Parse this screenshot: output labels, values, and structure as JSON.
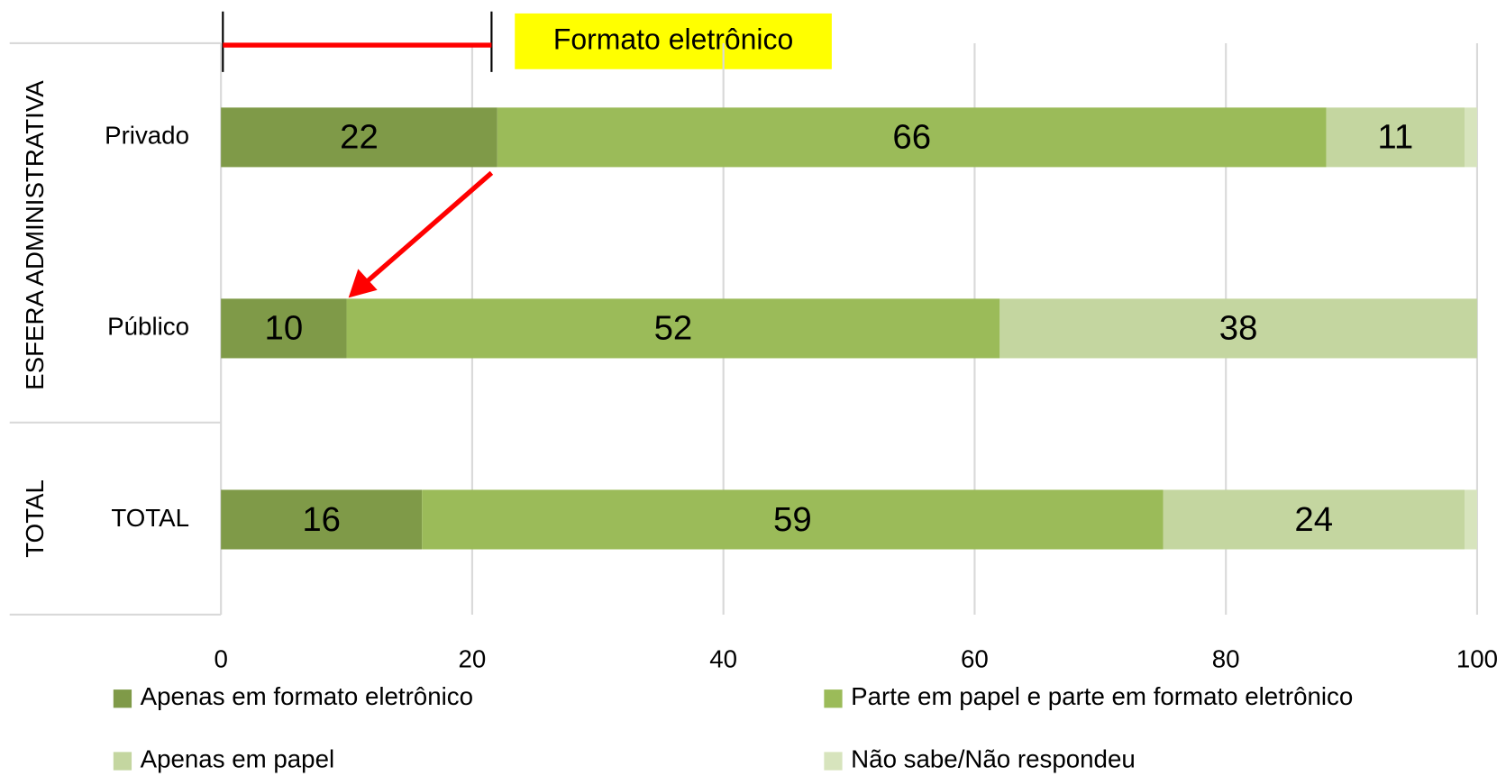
{
  "chart_data": {
    "type": "stacked_bar_horizontal",
    "group_labels": [
      "ESFERA ADMINISTRATIVA",
      "TOTAL"
    ],
    "annotation": "Formato eletrônico",
    "categories": [
      "Privado",
      "Público",
      "TOTAL"
    ],
    "series": [
      {
        "name": "Apenas em formato eletrônico",
        "color": "#7f9a48",
        "values": [
          22,
          10,
          16
        ]
      },
      {
        "name": "Parte em papel e parte em formato eletrônico",
        "color": "#9bbb59",
        "values": [
          66,
          52,
          59
        ]
      },
      {
        "name": "Apenas em papel",
        "color": "#c4d6a0",
        "values": [
          11,
          38,
          24
        ]
      },
      {
        "name": "Não sabe/Não respondeu",
        "color": "#d7e4bd",
        "values": [
          1,
          0,
          1
        ]
      }
    ],
    "labeled_series": [
      0,
      1,
      2
    ],
    "xlim": [
      0,
      100
    ],
    "xticks": [
      0,
      20,
      40,
      60,
      80,
      100
    ],
    "grid": true
  }
}
